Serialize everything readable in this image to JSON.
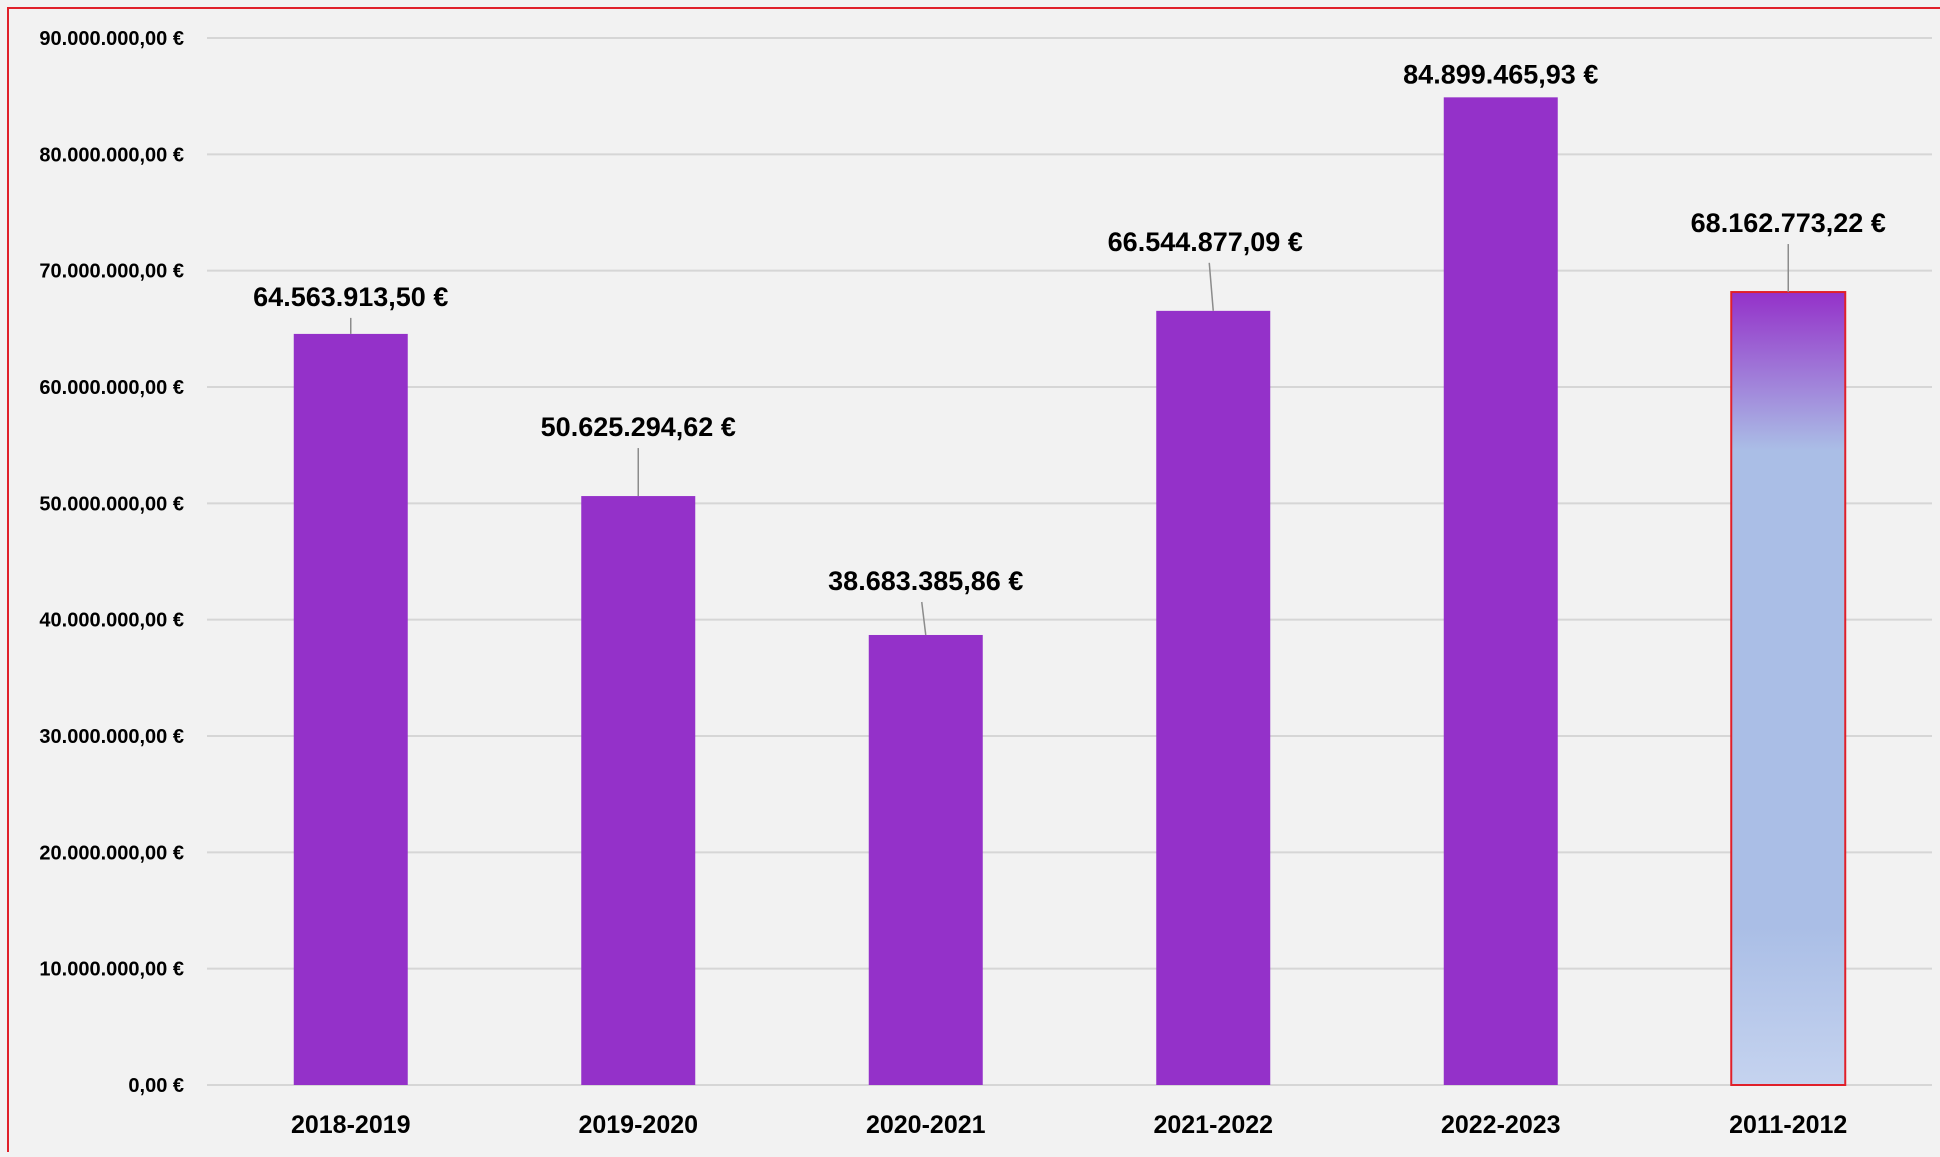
{
  "chart_data": {
    "type": "bar",
    "title": "",
    "xlabel": "",
    "ylabel": "",
    "categories": [
      "2018-2019",
      "2019-2020",
      "2020-2021",
      "2021-2022",
      "2022-2023",
      "2011-2012"
    ],
    "values": [
      64563913.5,
      50625294.62,
      38683385.86,
      66544877.09,
      84899465.93,
      68162773.22
    ],
    "data_labels": [
      "64.563.913,50 €",
      "50.625.294,62 €",
      "38.683.385,86 €",
      "66.544.877,09 €",
      "84.899.465,93 €",
      "68.162.773,22 €"
    ],
    "ylim": [
      0,
      90000000
    ],
    "y_ticks": [
      0,
      10000000,
      20000000,
      30000000,
      40000000,
      50000000,
      60000000,
      70000000,
      80000000,
      90000000
    ],
    "y_tick_labels": [
      "0,00 €",
      "10.000.000,00 €",
      "20.000.000,00 €",
      "30.000.000,00 €",
      "40.000.000,00 €",
      "50.000.000,00 €",
      "60.000.000,00 €",
      "70.000.000,00 €",
      "80.000.000,00 €",
      "90.000.000,00 €"
    ],
    "grid": true,
    "legend": "none",
    "colors": {
      "bar": "#9431c9",
      "highlight_top": "#9431c9",
      "highlight_mid": "#aabee6",
      "highlight_bottom": "#c5d3ef",
      "highlight_border": "#e0202a",
      "frame_border": "#e0202a",
      "gridline": "#d6d6d6",
      "background": "#f2f2f2",
      "text": "#000000",
      "leader_line": "#8c8c8c"
    },
    "highlight_index": 5
  }
}
